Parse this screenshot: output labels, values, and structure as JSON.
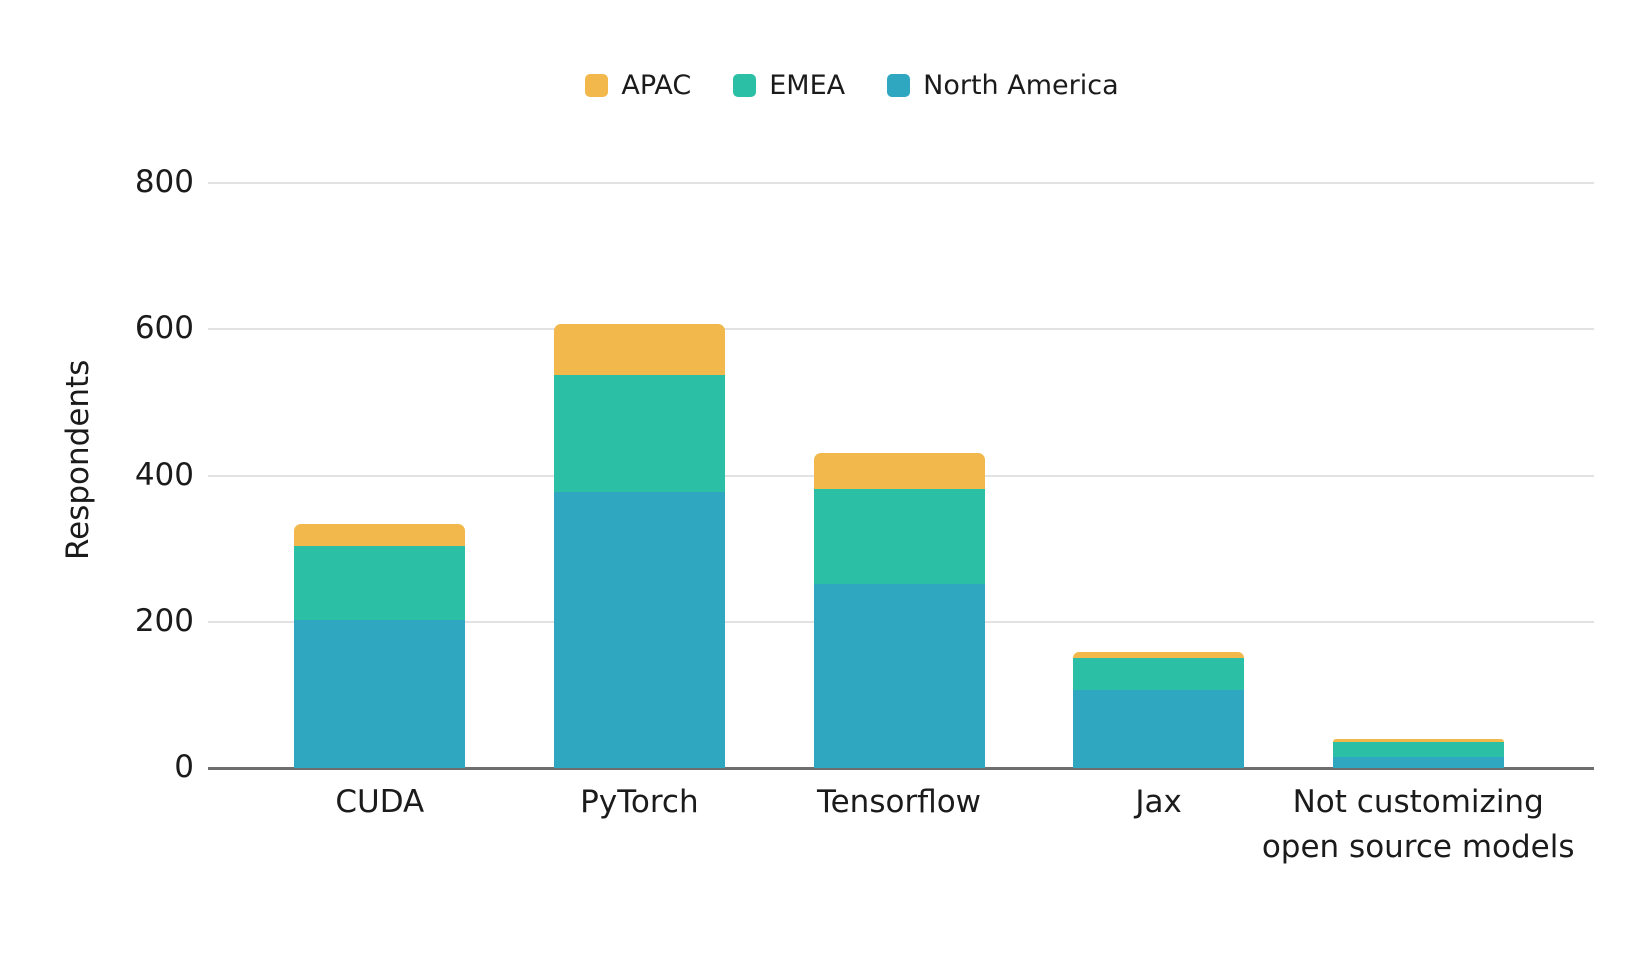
{
  "chart_data": {
    "type": "bar",
    "stacked": true,
    "title": "",
    "xlabel": "",
    "ylabel": "Respondents",
    "ylim": [
      0,
      800
    ],
    "yticks": [
      0,
      200,
      400,
      600,
      800
    ],
    "grid": true,
    "legend_position": "top-center",
    "legend_order": [
      "APAC",
      "EMEA",
      "North America"
    ],
    "categories": [
      "CUDA",
      "PyTorch",
      "Tensorflow",
      "Jax",
      "Not customizing\nopen source models"
    ],
    "series": [
      {
        "name": "North America",
        "color": "#2FA7C0",
        "values": [
          203,
          377,
          251,
          107,
          15
        ]
      },
      {
        "name": "EMEA",
        "color": "#2BC0A6",
        "values": [
          100,
          160,
          131,
          44,
          21
        ]
      },
      {
        "name": "APAC",
        "color": "#F2B84B",
        "values": [
          30,
          70,
          49,
          8,
          4
        ]
      }
    ],
    "totals_implied": [
      333,
      607,
      431,
      159,
      40
    ]
  },
  "colors": {
    "background": "#FFFFFF",
    "gridline": "#E2E2E2",
    "axis_line": "#6E6E6E",
    "text": "#1B1B1B"
  }
}
